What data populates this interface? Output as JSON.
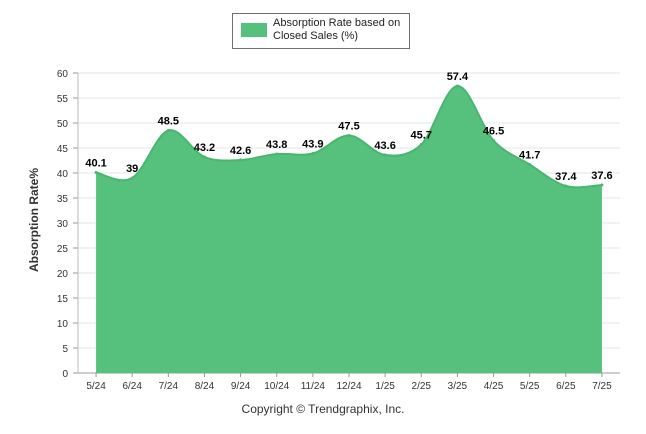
{
  "legend": {
    "label": "Absorption Rate based on Closed Sales (%)",
    "color": "#55c17d"
  },
  "footer": "Copyright © Trendgraphix, Inc.",
  "chart_data": {
    "type": "area",
    "ylabel": "Absorption Rate%",
    "xlabel": "",
    "ylim": [
      0,
      60
    ],
    "yticks": [
      0,
      5,
      10,
      15,
      20,
      25,
      30,
      35,
      40,
      45,
      50,
      55,
      60
    ],
    "grid": true,
    "legend_position": "top-center",
    "categories": [
      "5/24",
      "6/24",
      "7/24",
      "8/24",
      "9/24",
      "10/24",
      "11/24",
      "12/24",
      "1/25",
      "2/25",
      "3/25",
      "4/25",
      "5/25",
      "6/25",
      "7/25"
    ],
    "series": [
      {
        "name": "Absorption Rate based on Closed Sales (%)",
        "values": [
          40.1,
          39,
          48.5,
          43.2,
          42.6,
          43.8,
          43.9,
          47.5,
          43.6,
          45.7,
          57.4,
          46.5,
          41.7,
          37.4,
          37.6
        ],
        "labels": [
          "40.1",
          "39",
          "48.5",
          "43.2",
          "42.6",
          "43.8",
          "43.9",
          "47.5",
          "43.6",
          "45.7",
          "57.4",
          "46.5",
          "41.7",
          "37.4",
          "37.6"
        ],
        "color": "#55c17d"
      }
    ]
  }
}
